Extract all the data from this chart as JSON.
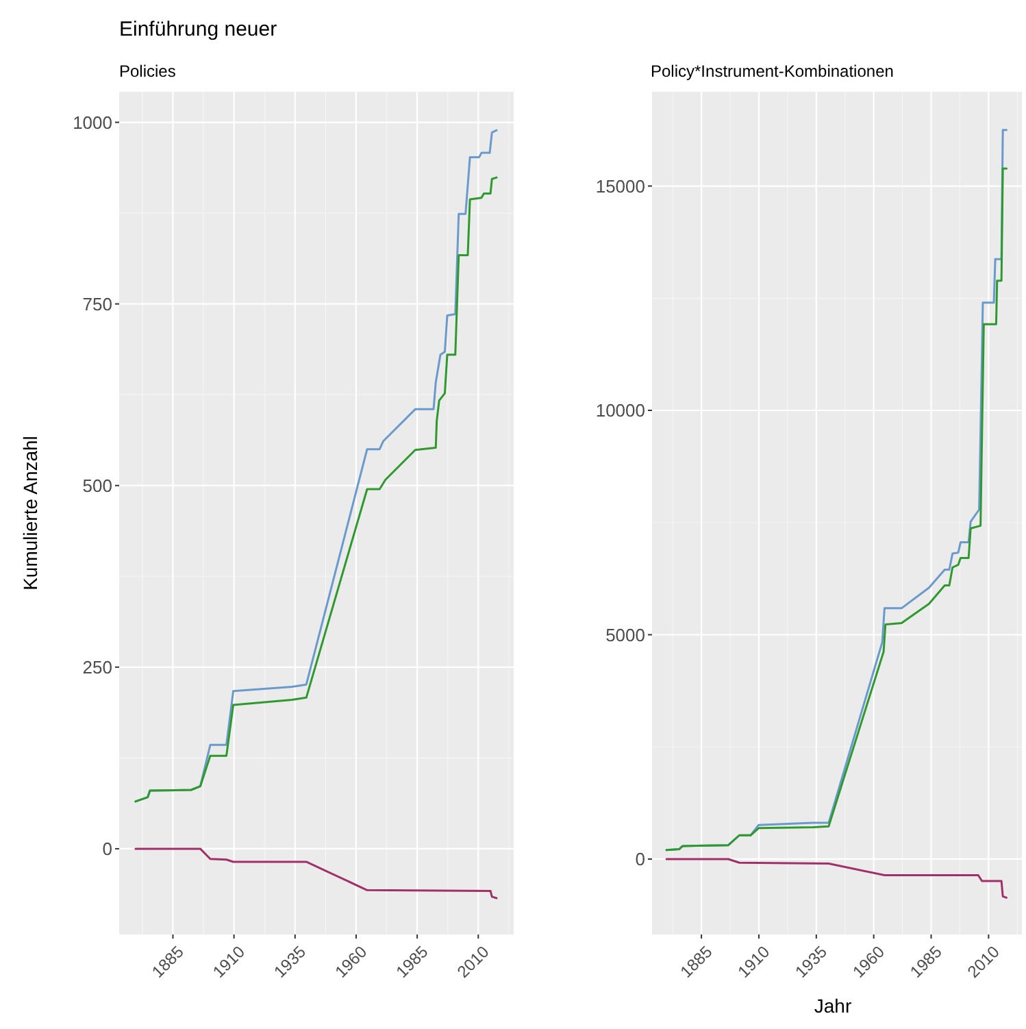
{
  "chart_data": [
    {
      "type": "line",
      "title": "Einführung neuer",
      "subtitle": "Policies",
      "ylabel": "Kumulierte Anzahl",
      "xlim": [
        1863,
        2024.5
      ],
      "ylim": [
        -118,
        1042
      ],
      "xticks": [
        1885,
        1910,
        1935,
        1960,
        1985,
        2010
      ],
      "yticks": [
        0,
        250,
        500,
        750,
        1000
      ],
      "grid": true,
      "series": [
        {
          "color": "#6a9acb",
          "x": [
            1869.7,
            1874.7,
            1875.6,
            1892.5,
            1896.2,
            1900.3,
            1906.9,
            1909.7,
            1933.7,
            1939.6,
            1964.5,
            1969.6,
            1971.1,
            1984.2,
            1991.7,
            1992.6,
            1994.5,
            1996.3,
            1997.3,
            2000.6,
            2002,
            2004.8,
            2006.6,
            2010.4,
            2011.3,
            2014.7,
            2015.6,
            2017.5
          ],
          "values": [
            65,
            71,
            80,
            81,
            86,
            143,
            143,
            217,
            223,
            226,
            550,
            550,
            561,
            605,
            605,
            642,
            680,
            684,
            734,
            736,
            874,
            874,
            952,
            952,
            958,
            958,
            986,
            989
          ]
        },
        {
          "color": "#2e9a2e",
          "x": [
            1869.7,
            1874.7,
            1875.6,
            1892.5,
            1896.2,
            1900.3,
            1906.9,
            1909.7,
            1933.7,
            1939.6,
            1964.5,
            1969.6,
            1972,
            1984.2,
            1992.6,
            1993,
            1994,
            1996.3,
            1997.3,
            2000.6,
            2002,
            2005.7,
            2006.6,
            2011.3,
            2012.3,
            2015,
            2015.6,
            2017.5
          ],
          "values": [
            65,
            71,
            80,
            81,
            86,
            128,
            128,
            198,
            205,
            208,
            495,
            495,
            508,
            549,
            552,
            589,
            617,
            627,
            680,
            680,
            817,
            817,
            894,
            896,
            902,
            902,
            922,
            924
          ]
        },
        {
          "color": "#a03068",
          "x": [
            1869.7,
            1896.2,
            1900.3,
            1906.9,
            1909.7,
            1939.6,
            1964.5,
            2015,
            2015.6,
            2017.5
          ],
          "values": [
            0,
            0,
            -14,
            -15,
            -18,
            -18,
            -57,
            -58,
            -66,
            -68
          ]
        }
      ]
    },
    {
      "type": "line",
      "subtitle": "Policy*Instrument-Kombinationen",
      "xlabel": "Jahr",
      "xlim": [
        1863.5,
        2024.5
      ],
      "ylim": [
        -1680,
        17100
      ],
      "xticks": [
        1885,
        1910,
        1935,
        1960,
        1985,
        2010
      ],
      "yticks": [
        0,
        5000,
        10000,
        15000
      ],
      "grid": true,
      "series": [
        {
          "color": "#6a9acb",
          "x": [
            1869.8,
            1875.3,
            1876.8,
            1896.7,
            1901.5,
            1906.4,
            1909.9,
            1933.6,
            1940.4,
            1963.7,
            1964.7,
            1972.1,
            1984.1,
            1990.9,
            1992.9,
            1994.3,
            1996.8,
            1997.8,
            2001.3,
            2002.2,
            2005.9,
            2007.5,
            2012.3,
            2012.9,
            2015.6,
            2016.2,
            2017.8
          ],
          "values": [
            200,
            220,
            290,
            310,
            530,
            530,
            760,
            810,
            810,
            4830,
            5590,
            5590,
            6050,
            6450,
            6450,
            6810,
            6830,
            7060,
            7060,
            7520,
            7790,
            12400,
            12400,
            13370,
            13370,
            16250,
            16250
          ]
        },
        {
          "color": "#2e9a2e",
          "x": [
            1869.8,
            1875.3,
            1876.8,
            1896.7,
            1901.5,
            1906.4,
            1909.9,
            1933.6,
            1940.4,
            1964.3,
            1965.1,
            1972.1,
            1984.1,
            1990.9,
            1992.9,
            1994.3,
            1996.8,
            1997.8,
            2001.3,
            2002.2,
            2006.5,
            2007.9,
            2013.3,
            2013.7,
            2015.6,
            2016.2,
            2017.8
          ],
          "values": [
            200,
            220,
            290,
            310,
            530,
            530,
            690,
            710,
            730,
            4620,
            5230,
            5260,
            5690,
            6100,
            6100,
            6500,
            6560,
            6710,
            6710,
            7370,
            7430,
            11920,
            11920,
            12890,
            12890,
            15390,
            15390
          ]
        },
        {
          "color": "#a03068",
          "x": [
            1869.8,
            1896.7,
            1901.5,
            1940.4,
            1964.7,
            2005.5,
            2007.1,
            2015.6,
            2016.2,
            2017.8
          ],
          "values": [
            0,
            0,
            -80,
            -100,
            -360,
            -360,
            -490,
            -490,
            -830,
            -860
          ]
        }
      ]
    }
  ]
}
